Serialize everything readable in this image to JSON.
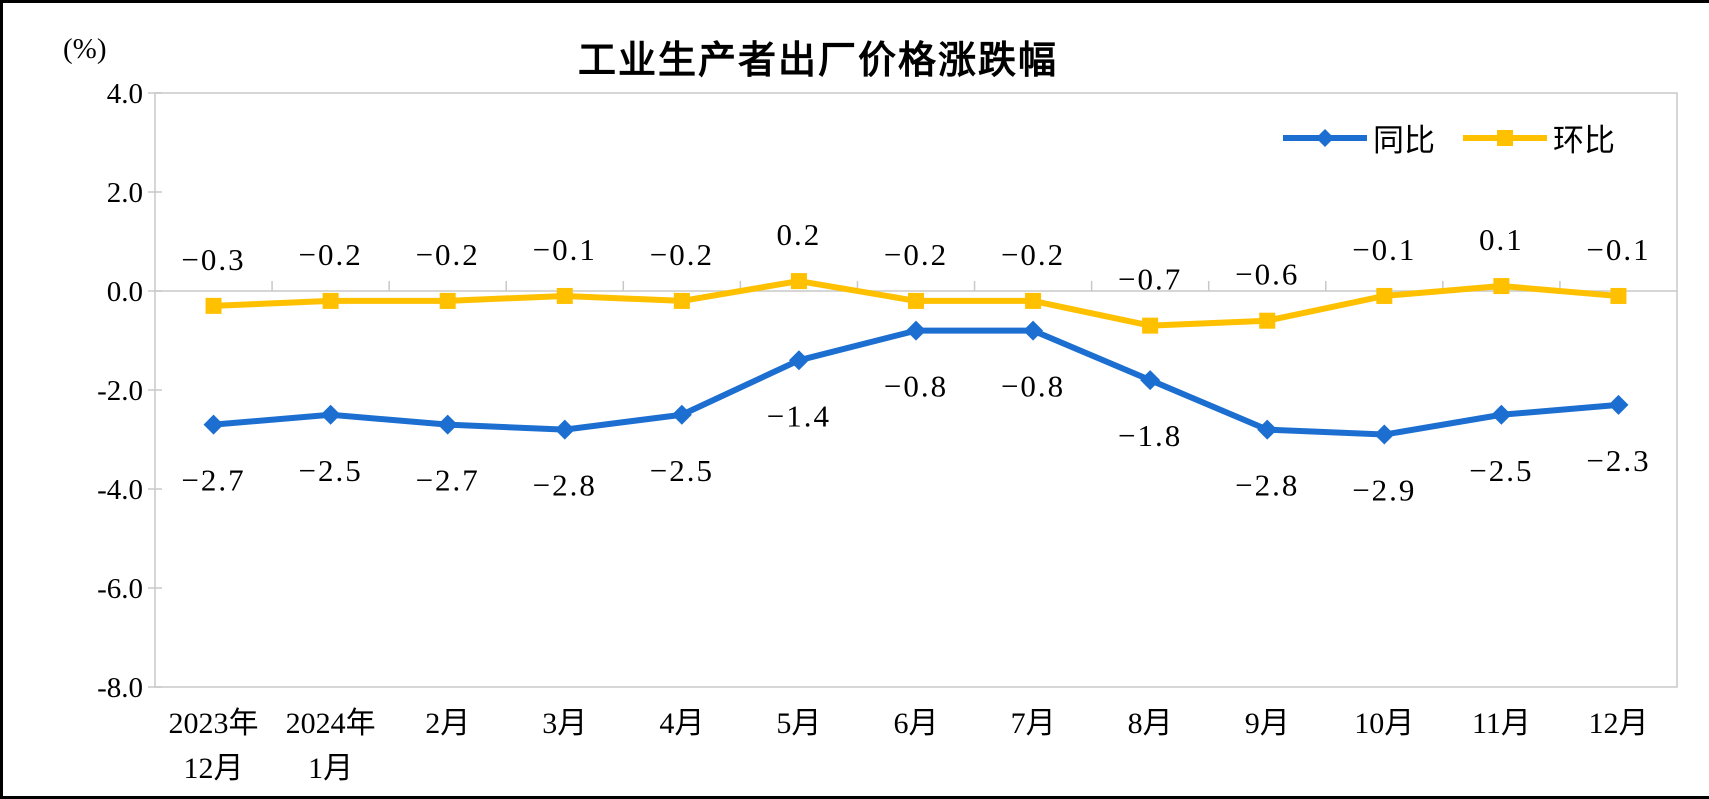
{
  "chart_data": {
    "type": "line",
    "title": "工业生产者出厂价格涨跌幅",
    "unit_label": "(%)",
    "categories": [
      [
        "2023年",
        "12月"
      ],
      [
        "2024年",
        "1月"
      ],
      [
        "2月"
      ],
      [
        "3月"
      ],
      [
        "4月"
      ],
      [
        "5月"
      ],
      [
        "6月"
      ],
      [
        "7月"
      ],
      [
        "8月"
      ],
      [
        "9月"
      ],
      [
        "10月"
      ],
      [
        "11月"
      ],
      [
        "12月"
      ]
    ],
    "series": [
      {
        "id": "yoy",
        "name": "同比",
        "color": "#1C6FD0",
        "marker": "diamond",
        "label_position": "below",
        "values": [
          -2.7,
          -2.5,
          -2.7,
          -2.8,
          -2.5,
          -1.4,
          -0.8,
          -0.8,
          -1.8,
          -2.8,
          -2.9,
          -2.5,
          -2.3
        ],
        "labels": [
          "−2.7",
          "−2.5",
          "−2.7",
          "−2.8",
          "−2.5",
          "−1.4",
          "−0.8",
          "−0.8",
          "−1.8",
          "−2.8",
          "−2.9",
          "−2.5",
          "−2.3"
        ]
      },
      {
        "id": "mom",
        "name": "环比",
        "color": "#FFC000",
        "marker": "square",
        "label_position": "above",
        "values": [
          -0.3,
          -0.2,
          -0.2,
          -0.1,
          -0.2,
          0.2,
          -0.2,
          -0.2,
          -0.7,
          -0.6,
          -0.1,
          0.1,
          -0.1
        ],
        "labels": [
          "−0.3",
          "−0.2",
          "−0.2",
          "−0.1",
          "−0.2",
          "0.2",
          "−0.2",
          "−0.2",
          "−0.7",
          "−0.6",
          "−0.1",
          "0.1",
          "−0.1"
        ]
      }
    ],
    "y_axis": {
      "min": -8.0,
      "max": 4.0,
      "step": 2.0,
      "tick_labels": [
        "4.0",
        "2.0",
        "0.0",
        "-2.0",
        "-4.0",
        "-6.0",
        "-8.0"
      ]
    },
    "legend": {
      "position": "top-right"
    },
    "grid": false,
    "axis_color": "#C8C8C8",
    "text_color": "#000000",
    "background": "#FFFFFF"
  }
}
